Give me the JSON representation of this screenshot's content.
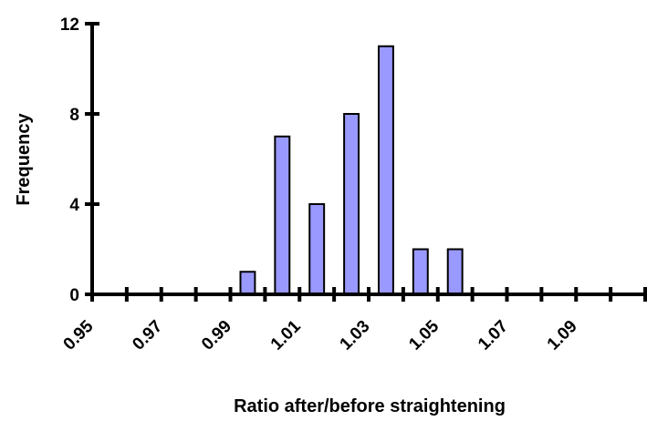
{
  "chart_data": {
    "type": "bar",
    "xlabel": "Ratio after/before straightening",
    "ylabel": "Frequency",
    "ylim": [
      0,
      12
    ],
    "yticks": [
      "0",
      "4",
      "8",
      "12"
    ],
    "xlim": [
      0.95,
      1.11
    ],
    "xtick_labels": [
      "0.95",
      "0.97",
      "0.99",
      "1.01",
      "1.03",
      "1.05",
      "1.07",
      "1.09"
    ],
    "bin_width": 0.01,
    "bins": [
      0.99,
      1.0,
      1.01,
      1.02,
      1.03,
      1.04,
      1.05
    ],
    "values": [
      1,
      7,
      4,
      8,
      11,
      2,
      2
    ],
    "grid": false,
    "bar_color": "#9999ff"
  }
}
